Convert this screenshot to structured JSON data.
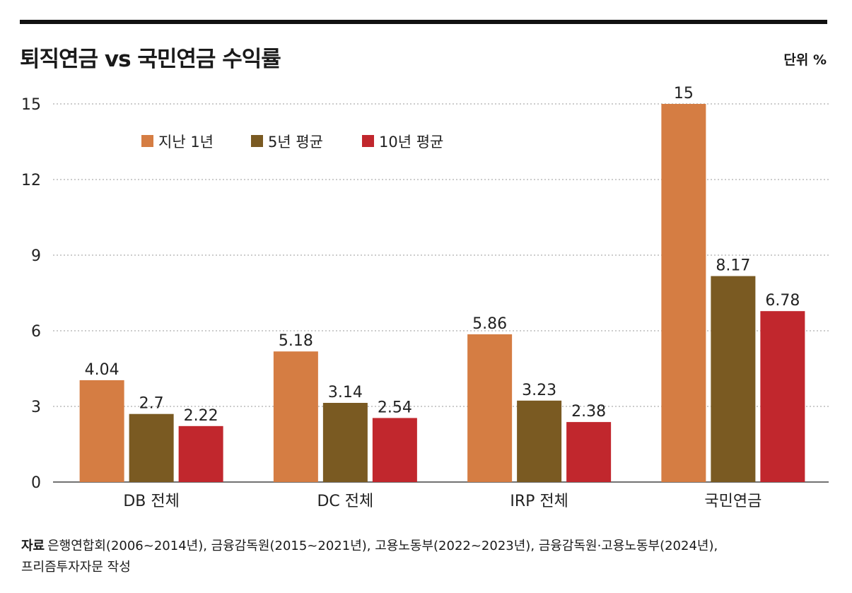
{
  "title": "퇴직연금 vs 국민연금 수익률",
  "unit": "단위 %",
  "source": {
    "label": "자료",
    "text": "은행연합회(2006~2014년), 금융감독원(2015~2021년), 고용노동부(2022~2023년), 금융감독원·고용노동부(2024년),",
    "text2": "프리즘투자자문 작성"
  },
  "chart_data": {
    "type": "bar",
    "categories": [
      "DB 전체",
      "DC 전체",
      "IRP 전체",
      "국민연금"
    ],
    "series": [
      {
        "name": "지난 1년",
        "color": "#d57d43",
        "values": [
          4.04,
          5.18,
          5.86,
          15
        ],
        "labels": [
          "4.04",
          "5.18",
          "5.86",
          "15"
        ]
      },
      {
        "name": "5년 평균",
        "color": "#7a5a22",
        "values": [
          2.7,
          3.14,
          3.23,
          8.17
        ],
        "labels": [
          "2.7",
          "3.14",
          "3.23",
          "8.17"
        ]
      },
      {
        "name": "10년 평균",
        "color": "#c1272d",
        "values": [
          2.22,
          2.54,
          2.38,
          6.78
        ],
        "labels": [
          "2.22",
          "2.54",
          "2.38",
          "6.78"
        ]
      }
    ],
    "yticks": [
      0,
      3,
      6,
      9,
      12,
      15
    ],
    "ylim": [
      0,
      15
    ],
    "grid": "dotted horizontal",
    "legend": "top-left"
  }
}
